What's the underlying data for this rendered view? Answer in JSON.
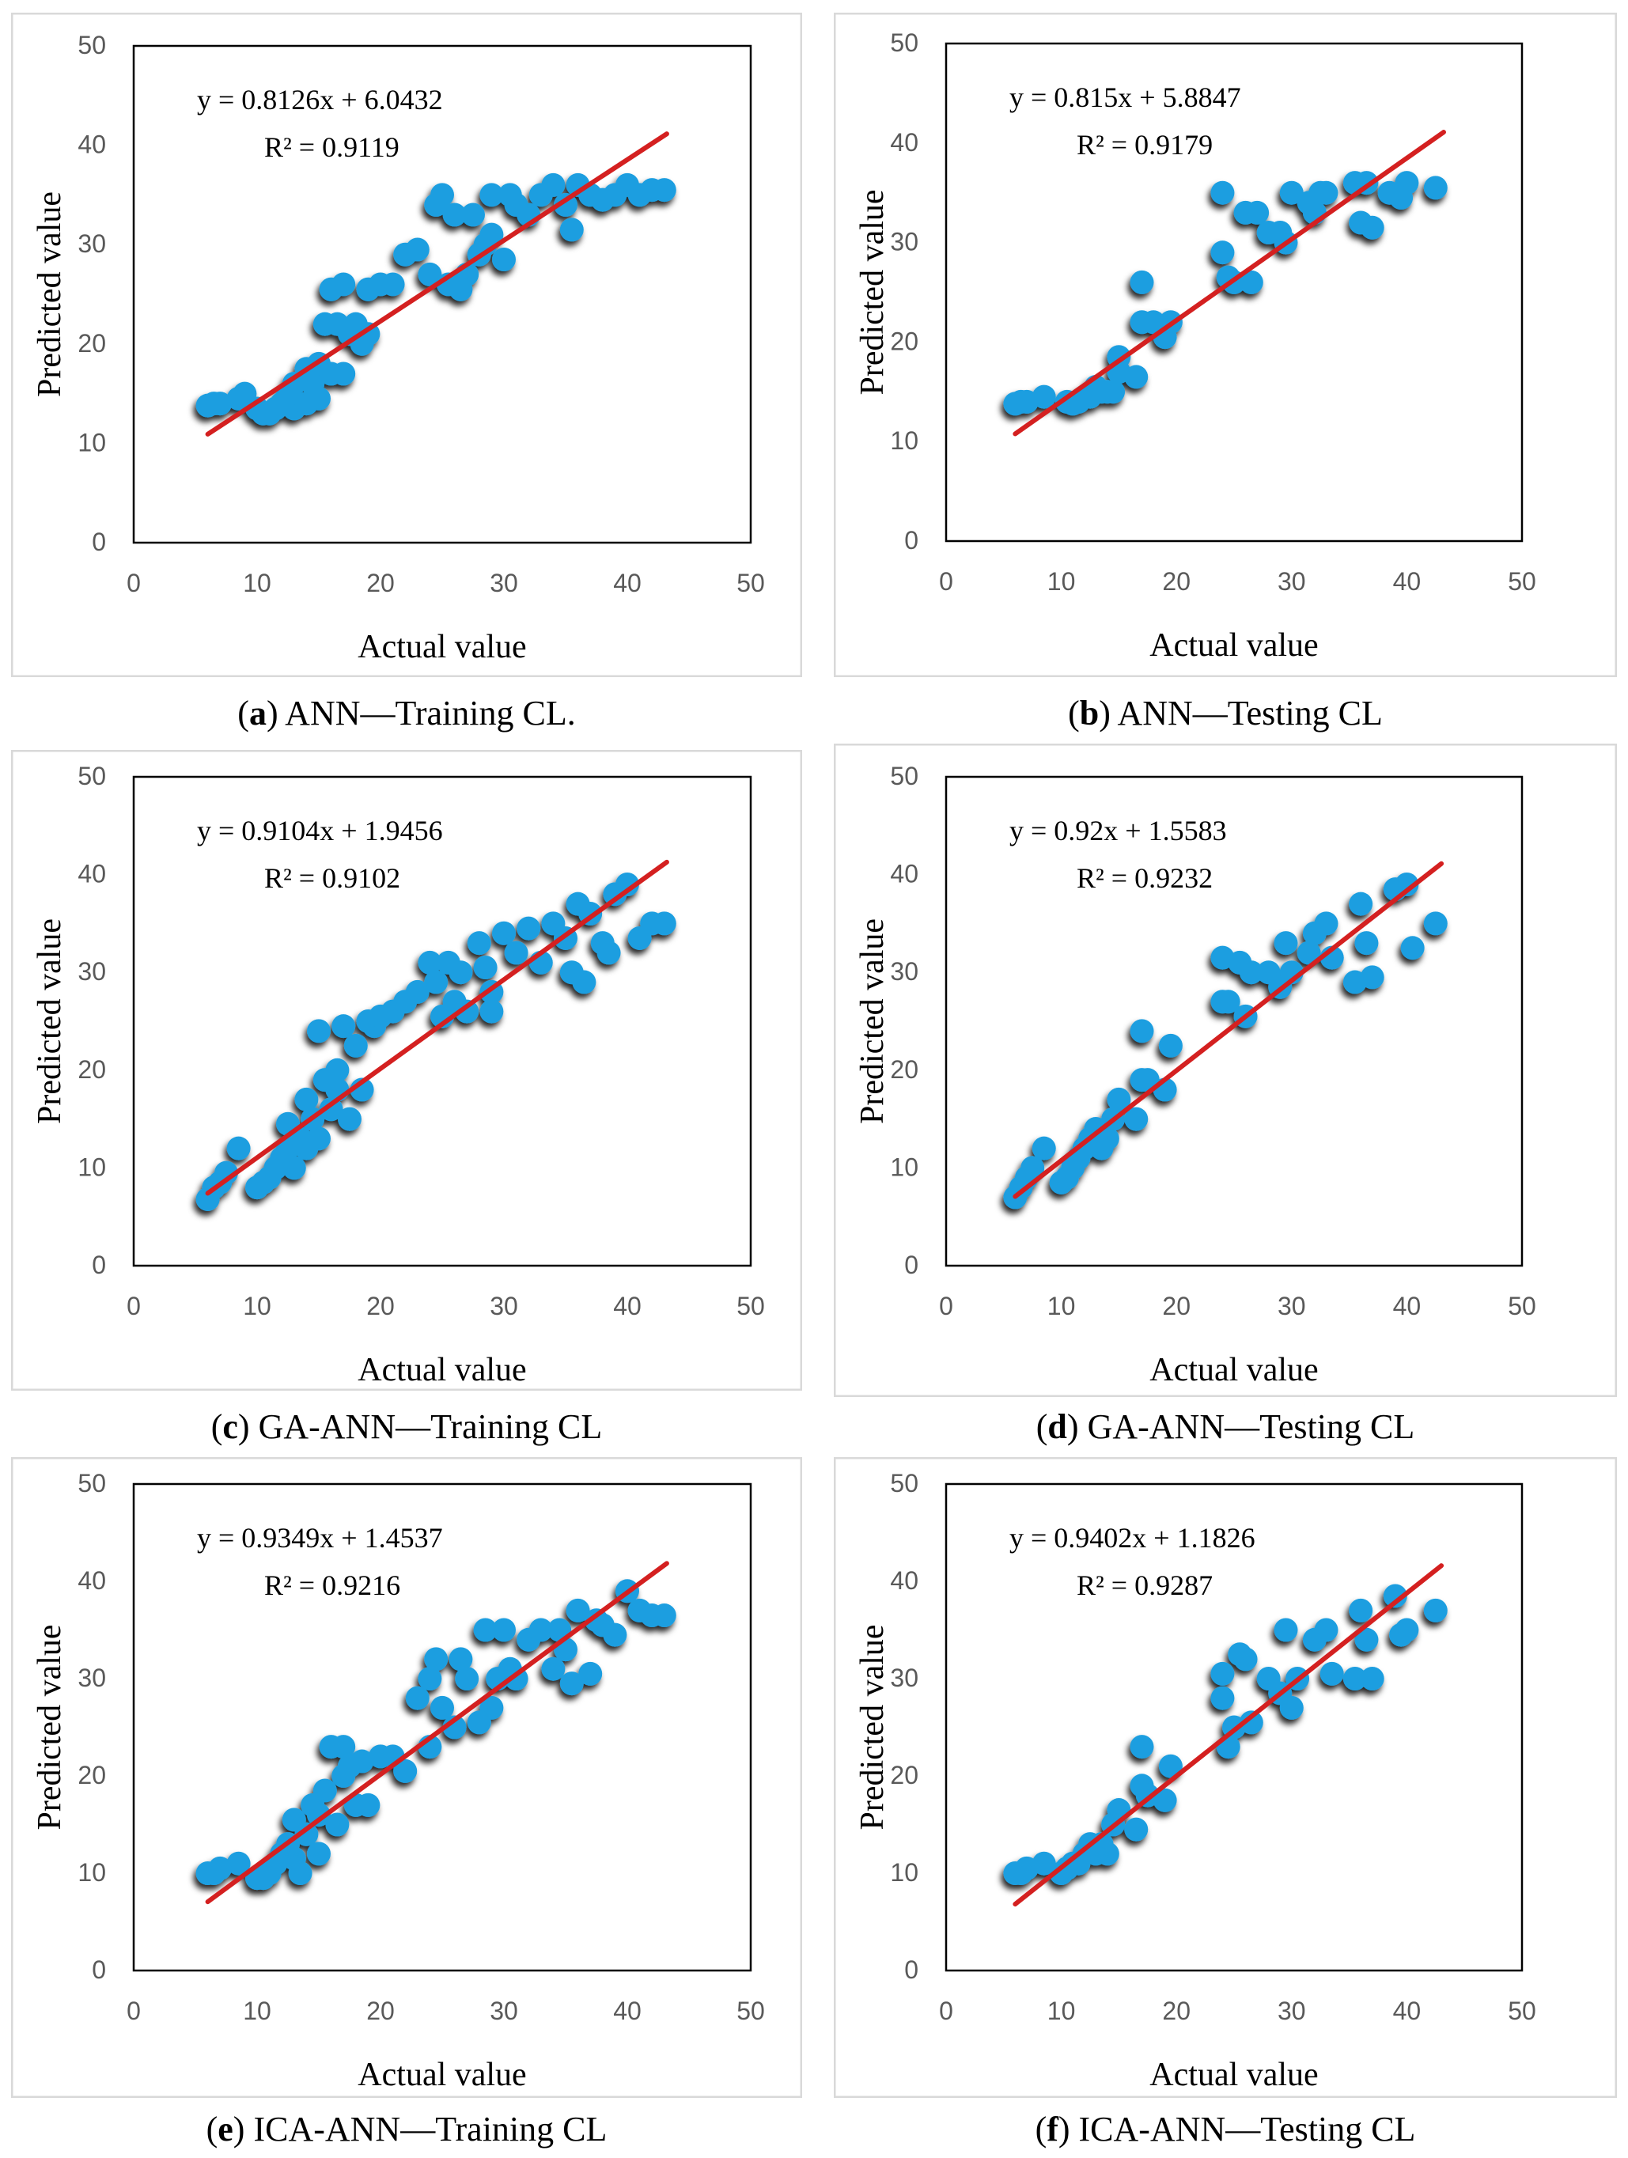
{
  "figure": {
    "accent_point_color": "#1f9ee0",
    "point_shadow_color": "#000000",
    "fit_line_color": "#d42020",
    "frame_color": "#d9d9d9"
  },
  "chart_data": [
    {
      "id": "a",
      "type": "scatter",
      "caption_letter": "a",
      "caption_text": " ANN—Training CL.",
      "xlabel": "Actual value",
      "ylabel": "Predicted value",
      "xlim": [
        0,
        50
      ],
      "ylim": [
        0,
        50
      ],
      "xticks": [
        "0",
        "10",
        "20",
        "30",
        "40",
        "50"
      ],
      "yticks": [
        "0",
        "10",
        "20",
        "30",
        "40",
        "50"
      ],
      "equation": "y = 0.8126x + 6.0432",
      "r2_text": "R² = 0.9119",
      "slope": 0.8126,
      "intercept": 6.0432,
      "fit_range": [
        6,
        43.2
      ],
      "points": [
        [
          6,
          13.8
        ],
        [
          6.5,
          14
        ],
        [
          7,
          14
        ],
        [
          8.5,
          14.5
        ],
        [
          9,
          15
        ],
        [
          10,
          13.5
        ],
        [
          10.5,
          13
        ],
        [
          11,
          13
        ],
        [
          11.5,
          13.5
        ],
        [
          12,
          14
        ],
        [
          12.5,
          15
        ],
        [
          13,
          16
        ],
        [
          13,
          13.5
        ],
        [
          14,
          14
        ],
        [
          14,
          17.5
        ],
        [
          14.5,
          16
        ],
        [
          15,
          18
        ],
        [
          15,
          14.5
        ],
        [
          15.5,
          22
        ],
        [
          16,
          17
        ],
        [
          16,
          25.5
        ],
        [
          16.5,
          22
        ],
        [
          17,
          26
        ],
        [
          17,
          17
        ],
        [
          17.5,
          21
        ],
        [
          18,
          22
        ],
        [
          18.5,
          20
        ],
        [
          19,
          21
        ],
        [
          19,
          25.5
        ],
        [
          20,
          26
        ],
        [
          21,
          26
        ],
        [
          22,
          29
        ],
        [
          23,
          29.5
        ],
        [
          24,
          27
        ],
        [
          24.5,
          34
        ],
        [
          25,
          35
        ],
        [
          25.5,
          26
        ],
        [
          26,
          33
        ],
        [
          26.5,
          25.5
        ],
        [
          27,
          27
        ],
        [
          27.5,
          33
        ],
        [
          28,
          29
        ],
        [
          28.5,
          30
        ],
        [
          29,
          35
        ],
        [
          29,
          31
        ],
        [
          30,
          28.5
        ],
        [
          30.5,
          35
        ],
        [
          31,
          34
        ],
        [
          32,
          33
        ],
        [
          33,
          35
        ],
        [
          34,
          36
        ],
        [
          35,
          34
        ],
        [
          35.5,
          31.5
        ],
        [
          36,
          36
        ],
        [
          37,
          35
        ],
        [
          38,
          34.5
        ],
        [
          39,
          35
        ],
        [
          40,
          36
        ],
        [
          41,
          35
        ],
        [
          42,
          35.5
        ],
        [
          43,
          35.5
        ]
      ]
    },
    {
      "id": "b",
      "type": "scatter",
      "caption_letter": "b",
      "caption_text": " ANN—Testing CL",
      "xlabel": "Actual value",
      "ylabel": "Predicted value",
      "xlim": [
        0,
        50
      ],
      "ylim": [
        0,
        50
      ],
      "xticks": [
        "0",
        "10",
        "20",
        "30",
        "40",
        "50"
      ],
      "yticks": [
        "0",
        "10",
        "20",
        "30",
        "40",
        "50"
      ],
      "equation": "y = 0.815x + 5.8847",
      "r2_text": "R² = 0.9179",
      "slope": 0.815,
      "intercept": 5.8847,
      "fit_range": [
        6,
        43.2
      ],
      "points": [
        [
          6,
          13.8
        ],
        [
          6.5,
          14
        ],
        [
          7,
          14
        ],
        [
          8.5,
          14.5
        ],
        [
          10.5,
          14
        ],
        [
          11,
          13.8
        ],
        [
          11.5,
          14
        ],
        [
          12,
          14.5
        ],
        [
          12.5,
          14.5
        ],
        [
          13,
          15.5
        ],
        [
          13.5,
          15
        ],
        [
          14,
          15
        ],
        [
          14.5,
          15
        ],
        [
          15,
          18.5
        ],
        [
          15,
          17
        ],
        [
          16.5,
          16.5
        ],
        [
          17,
          26
        ],
        [
          17,
          22
        ],
        [
          18,
          22
        ],
        [
          19,
          20.5
        ],
        [
          19.5,
          22
        ],
        [
          24,
          35
        ],
        [
          24,
          29
        ],
        [
          24.5,
          26.5
        ],
        [
          25,
          26
        ],
        [
          26,
          33
        ],
        [
          26.5,
          26
        ],
        [
          27,
          33
        ],
        [
          28,
          31
        ],
        [
          29,
          31
        ],
        [
          29.5,
          30
        ],
        [
          30,
          35
        ],
        [
          31.5,
          34
        ],
        [
          32,
          33
        ],
        [
          32.5,
          35
        ],
        [
          33,
          35
        ],
        [
          35.5,
          36
        ],
        [
          36,
          32
        ],
        [
          36.5,
          36
        ],
        [
          37,
          31.5
        ],
        [
          38.5,
          35
        ],
        [
          39.5,
          34.5
        ],
        [
          40,
          36
        ],
        [
          42.5,
          35.5
        ]
      ]
    },
    {
      "id": "c",
      "type": "scatter",
      "caption_letter": "c",
      "caption_text": " GA-ANN—Training CL",
      "xlabel": "Actual value",
      "ylabel": "Predicted value",
      "xlim": [
        0,
        50
      ],
      "ylim": [
        0,
        50
      ],
      "xticks": [
        "0",
        "10",
        "20",
        "30",
        "40",
        "50"
      ],
      "yticks": [
        "0",
        "10",
        "20",
        "30",
        "40",
        "50"
      ],
      "equation": "y = 0.9104x + 1.9456",
      "r2_text": "R² = 0.9102",
      "slope": 0.9104,
      "intercept": 1.9456,
      "fit_range": [
        6,
        43.2
      ],
      "points": [
        [
          6,
          6.8
        ],
        [
          6.5,
          8
        ],
        [
          7,
          8.5
        ],
        [
          7.5,
          9.5
        ],
        [
          8.5,
          12
        ],
        [
          10,
          8
        ],
        [
          10.5,
          8.5
        ],
        [
          11,
          9
        ],
        [
          11.5,
          10
        ],
        [
          12,
          11
        ],
        [
          12.5,
          12
        ],
        [
          12.5,
          14.5
        ],
        [
          13,
          10
        ],
        [
          13.5,
          13
        ],
        [
          14,
          12
        ],
        [
          14.5,
          15
        ],
        [
          14,
          17
        ],
        [
          15,
          13
        ],
        [
          15,
          24
        ],
        [
          15.5,
          19
        ],
        [
          16,
          16
        ],
        [
          16.5,
          18
        ],
        [
          16.5,
          20
        ],
        [
          17,
          24.5
        ],
        [
          17.5,
          15
        ],
        [
          18,
          22.5
        ],
        [
          18.5,
          18
        ],
        [
          19,
          25
        ],
        [
          19.5,
          24.5
        ],
        [
          20,
          25.5
        ],
        [
          21,
          26
        ],
        [
          22,
          27
        ],
        [
          23,
          28
        ],
        [
          24,
          31
        ],
        [
          24.5,
          29
        ],
        [
          25,
          25.5
        ],
        [
          25.5,
          31
        ],
        [
          26,
          27
        ],
        [
          26.5,
          30
        ],
        [
          27,
          26
        ],
        [
          28,
          33
        ],
        [
          28.5,
          30.5
        ],
        [
          29,
          28
        ],
        [
          29,
          26
        ],
        [
          30,
          34
        ],
        [
          31,
          32
        ],
        [
          32,
          34.5
        ],
        [
          33,
          31
        ],
        [
          34,
          35
        ],
        [
          35,
          33.5
        ],
        [
          35.5,
          30
        ],
        [
          36,
          37
        ],
        [
          36.5,
          29
        ],
        [
          37,
          36
        ],
        [
          38,
          33
        ],
        [
          38.5,
          32
        ],
        [
          39,
          38
        ],
        [
          40,
          39
        ],
        [
          41,
          33.5
        ],
        [
          42,
          35
        ],
        [
          43,
          35
        ]
      ]
    },
    {
      "id": "d",
      "type": "scatter",
      "caption_letter": "d",
      "caption_text": " GA-ANN—Testing CL",
      "xlabel": "Actual value",
      "ylabel": "Predicted value",
      "xlim": [
        0,
        50
      ],
      "ylim": [
        0,
        50
      ],
      "xticks": [
        "0",
        "10",
        "20",
        "30",
        "40",
        "50"
      ],
      "yticks": [
        "0",
        "10",
        "20",
        "30",
        "40",
        "50"
      ],
      "equation": "y = 0.92x + 1.5583",
      "r2_text": "R² = 0.9232",
      "slope": 0.92,
      "intercept": 1.5583,
      "fit_range": [
        6,
        43
      ],
      "points": [
        [
          6,
          7
        ],
        [
          6.5,
          8
        ],
        [
          7,
          9
        ],
        [
          7.5,
          10
        ],
        [
          8.5,
          12
        ],
        [
          10,
          8.5
        ],
        [
          10.5,
          9
        ],
        [
          11,
          10
        ],
        [
          11.5,
          11
        ],
        [
          12,
          12
        ],
        [
          12.5,
          13
        ],
        [
          13,
          14
        ],
        [
          13.5,
          12
        ],
        [
          14,
          13
        ],
        [
          14.5,
          15
        ],
        [
          15,
          17
        ],
        [
          16.5,
          15
        ],
        [
          17,
          19
        ],
        [
          17,
          24
        ],
        [
          17.5,
          19
        ],
        [
          19,
          18
        ],
        [
          19.5,
          22.5
        ],
        [
          24,
          31.5
        ],
        [
          24,
          27
        ],
        [
          24.5,
          27
        ],
        [
          25.5,
          31
        ],
        [
          26,
          25.5
        ],
        [
          26.5,
          30
        ],
        [
          28,
          30
        ],
        [
          29,
          28.5
        ],
        [
          29.5,
          33
        ],
        [
          30,
          30
        ],
        [
          31.5,
          32
        ],
        [
          32,
          34
        ],
        [
          33,
          35
        ],
        [
          33.5,
          31.5
        ],
        [
          35.5,
          29
        ],
        [
          36,
          37
        ],
        [
          36.5,
          33
        ],
        [
          37,
          29.5
        ],
        [
          39,
          38.5
        ],
        [
          40,
          39
        ],
        [
          40.5,
          32.5
        ],
        [
          42.5,
          35
        ]
      ]
    },
    {
      "id": "e",
      "type": "scatter",
      "caption_letter": "e",
      "caption_text": " ICA-ANN—Training CL",
      "xlabel": "Actual value",
      "ylabel": "Predicted value",
      "xlim": [
        0,
        50
      ],
      "ylim": [
        0,
        50
      ],
      "xticks": [
        "0",
        "10",
        "20",
        "30",
        "40",
        "50"
      ],
      "yticks": [
        "0",
        "10",
        "20",
        "30",
        "40",
        "50"
      ],
      "equation": "y = 0.9349x + 1.4537",
      "r2_text": "R² = 0.9216",
      "slope": 0.9349,
      "intercept": 1.4537,
      "fit_range": [
        6,
        43.2
      ],
      "points": [
        [
          6,
          10
        ],
        [
          6.5,
          10
        ],
        [
          7,
          10.5
        ],
        [
          8.5,
          11
        ],
        [
          10,
          9.5
        ],
        [
          10.5,
          9.5
        ],
        [
          11,
          10
        ],
        [
          11.5,
          11
        ],
        [
          12,
          12
        ],
        [
          12.5,
          13
        ],
        [
          13,
          11.5
        ],
        [
          13,
          15.5
        ],
        [
          13.5,
          10
        ],
        [
          14,
          14
        ],
        [
          14.5,
          17
        ],
        [
          15,
          12
        ],
        [
          15,
          16
        ],
        [
          15.5,
          18.5
        ],
        [
          16,
          23
        ],
        [
          16.5,
          15
        ],
        [
          17,
          20
        ],
        [
          17,
          23
        ],
        [
          17.5,
          21
        ],
        [
          18,
          17
        ],
        [
          18.5,
          21.5
        ],
        [
          19,
          17
        ],
        [
          20,
          22
        ],
        [
          21,
          22
        ],
        [
          22,
          20.5
        ],
        [
          23,
          28
        ],
        [
          24,
          30
        ],
        [
          24,
          23
        ],
        [
          24.5,
          32
        ],
        [
          25,
          27
        ],
        [
          26,
          25
        ],
        [
          26.5,
          32
        ],
        [
          27,
          30
        ],
        [
          28,
          25.5
        ],
        [
          28.5,
          35
        ],
        [
          29,
          27
        ],
        [
          29.5,
          30
        ],
        [
          30,
          35
        ],
        [
          30.5,
          31
        ],
        [
          31,
          30
        ],
        [
          32,
          34
        ],
        [
          33,
          35
        ],
        [
          34,
          31
        ],
        [
          34.5,
          35
        ],
        [
          35,
          33
        ],
        [
          35.5,
          29.5
        ],
        [
          36,
          37
        ],
        [
          37,
          30.5
        ],
        [
          37.5,
          36
        ],
        [
          38,
          35.5
        ],
        [
          39,
          34.5
        ],
        [
          40,
          39
        ],
        [
          41,
          37
        ],
        [
          42,
          36.5
        ],
        [
          43,
          36.5
        ]
      ]
    },
    {
      "id": "f",
      "type": "scatter",
      "caption_letter": "f",
      "caption_text": " ICA-ANN—Testing CL",
      "xlabel": "Actual value",
      "ylabel": "Predicted value",
      "xlim": [
        0,
        50
      ],
      "ylim": [
        0,
        50
      ],
      "xticks": [
        "0",
        "10",
        "20",
        "30",
        "40",
        "50"
      ],
      "yticks": [
        "0",
        "10",
        "20",
        "30",
        "40",
        "50"
      ],
      "equation": "y = 0.9402x + 1.1826",
      "r2_text": "R² = 0.9287",
      "slope": 0.9402,
      "intercept": 1.1826,
      "fit_range": [
        6,
        43
      ],
      "points": [
        [
          6,
          10
        ],
        [
          6.5,
          10
        ],
        [
          7,
          10.5
        ],
        [
          8.5,
          11
        ],
        [
          10,
          10
        ],
        [
          10.5,
          10.5
        ],
        [
          11,
          11
        ],
        [
          11.5,
          11
        ],
        [
          12,
          12
        ],
        [
          12.5,
          13
        ],
        [
          13,
          12
        ],
        [
          13.5,
          13
        ],
        [
          14,
          12
        ],
        [
          14.5,
          15
        ],
        [
          15,
          16.5
        ],
        [
          16.5,
          14.5
        ],
        [
          17,
          19
        ],
        [
          17,
          23
        ],
        [
          17.5,
          18
        ],
        [
          19,
          17.5
        ],
        [
          19.5,
          21
        ],
        [
          24,
          30.5
        ],
        [
          24,
          28
        ],
        [
          24.5,
          23
        ],
        [
          25,
          25
        ],
        [
          25.5,
          32.5
        ],
        [
          26,
          32
        ],
        [
          26.5,
          25.5
        ],
        [
          28,
          30
        ],
        [
          29,
          28.5
        ],
        [
          29.5,
          35
        ],
        [
          30,
          27
        ],
        [
          30.5,
          30
        ],
        [
          32,
          34
        ],
        [
          33,
          35
        ],
        [
          33.5,
          30.5
        ],
        [
          35.5,
          30
        ],
        [
          36,
          37
        ],
        [
          36.5,
          34
        ],
        [
          37,
          30
        ],
        [
          39,
          38.5
        ],
        [
          39.5,
          34.5
        ],
        [
          40,
          35
        ],
        [
          42.5,
          37
        ]
      ]
    }
  ]
}
